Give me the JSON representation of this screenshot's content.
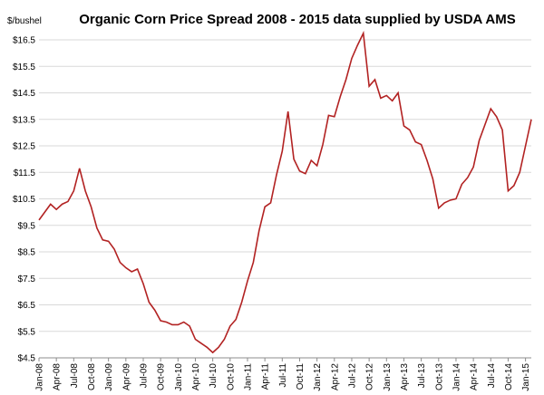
{
  "chart_data": {
    "type": "line",
    "title": "Organic Corn Price Spread 2008 - 2015 data supplied by USDA AMS",
    "ylabel": "$/bushel",
    "xlabel": "",
    "ylim": [
      4.5,
      17.0
    ],
    "yticks": [
      "$4.5",
      "$5.5",
      "$6.5",
      "$7.5",
      "$8.5",
      "$9.5",
      "$10.5",
      "$11.5",
      "$12.5",
      "$13.5",
      "$14.5",
      "$15.5",
      "$16.5"
    ],
    "xticks": [
      "Jan-08",
      "Apr-08",
      "Jul-08",
      "Oct-08",
      "Jan-09",
      "Apr-09",
      "Jul-09",
      "Oct-09",
      "Jan-10",
      "Apr-10",
      "Jul-10",
      "Oct-10",
      "Jan-11",
      "Apr-11",
      "Jul-11",
      "Oct-11",
      "Jan-12",
      "Apr-12",
      "Jul-12",
      "Oct-12",
      "Jan-13",
      "Apr-13",
      "Jul-13",
      "Oct-13",
      "Jan-14",
      "Apr-14",
      "Jul-14",
      "Oct-14",
      "Jan-15"
    ],
    "grid": true,
    "series": [
      {
        "color": "#b22222",
        "values": [
          9.7,
          10.0,
          10.3,
          10.1,
          10.3,
          10.4,
          10.8,
          11.65,
          10.8,
          10.2,
          9.4,
          8.95,
          8.9,
          8.6,
          8.1,
          7.9,
          7.75,
          7.85,
          7.3,
          6.6,
          6.3,
          5.9,
          5.85,
          5.75,
          5.75,
          5.85,
          5.7,
          5.2,
          5.05,
          4.9,
          4.7,
          4.9,
          5.2,
          5.7,
          5.95,
          6.6,
          7.4,
          8.1,
          9.3,
          10.2,
          10.35,
          11.4,
          12.3,
          13.8,
          12.0,
          11.55,
          11.45,
          11.95,
          11.75,
          12.55,
          13.65,
          13.6,
          14.35,
          15.0,
          15.8,
          16.3,
          16.75,
          14.75,
          15.0,
          14.3,
          14.4,
          14.2,
          14.5,
          13.25,
          13.1,
          12.65,
          12.55,
          11.95,
          11.25,
          10.15,
          10.35,
          10.45,
          10.5,
          11.05,
          11.3,
          11.7,
          12.7,
          13.3,
          13.9,
          13.6,
          13.1,
          10.8,
          11.0,
          11.5,
          12.5,
          13.5
        ]
      }
    ]
  }
}
